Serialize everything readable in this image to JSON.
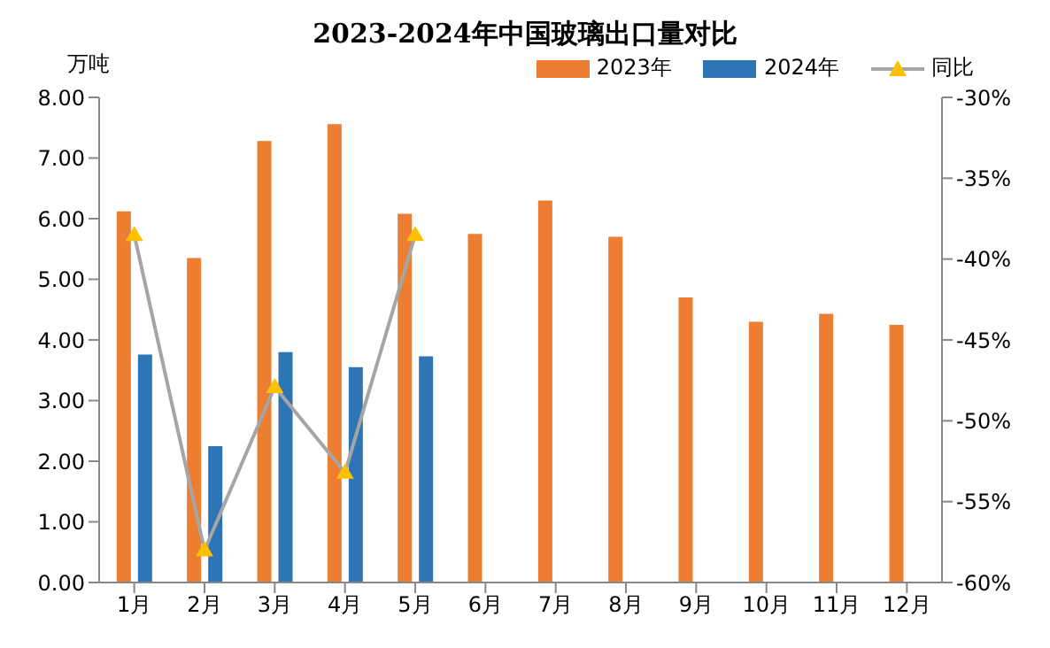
{
  "chart_data": {
    "type": "bar",
    "title": "2023-2024年中国玻璃出口量对比",
    "ylabel": "万吨",
    "categories": [
      "1月",
      "2月",
      "3月",
      "4月",
      "5月",
      "6月",
      "7月",
      "8月",
      "9月",
      "10月",
      "11月",
      "12月"
    ],
    "series": [
      {
        "name": "2023年",
        "color": "#ed7d31",
        "values": [
          6.12,
          5.35,
          7.28,
          7.56,
          6.08,
          5.75,
          6.3,
          5.7,
          4.7,
          4.3,
          4.43,
          4.25
        ]
      },
      {
        "name": "2024年",
        "color": "#2e75b6",
        "values": [
          3.76,
          2.25,
          3.8,
          3.55,
          3.73,
          null,
          null,
          null,
          null,
          null,
          null,
          null
        ]
      },
      {
        "name": "同比",
        "type": "line",
        "axis": "y2",
        "color": "#a5a5a5",
        "marker": "triangle",
        "values": [
          -38.5,
          -58,
          -47.9,
          -53.2,
          -38.5,
          null,
          null,
          null,
          null,
          null,
          null,
          null
        ]
      }
    ],
    "ylim": [
      0,
      8
    ],
    "yticks": [
      {
        "value": 0,
        "label": "0.00"
      },
      {
        "value": 1,
        "label": "1.00"
      },
      {
        "value": 2,
        "label": "2.00"
      },
      {
        "value": 3,
        "label": "3.00"
      },
      {
        "value": 4,
        "label": "4.00"
      },
      {
        "value": 5,
        "label": "5.00"
      },
      {
        "value": 6,
        "label": "6.00"
      },
      {
        "value": 7,
        "label": "7.00"
      },
      {
        "value": 8,
        "label": "8.00"
      }
    ],
    "y2lim": [
      -60,
      -30
    ],
    "y2ticks": [
      {
        "value": -60,
        "label": "-60%"
      },
      {
        "value": -55,
        "label": "-55%"
      },
      {
        "value": -50,
        "label": "-50%"
      },
      {
        "value": -45,
        "label": "-45%"
      },
      {
        "value": -40,
        "label": "-40%"
      },
      {
        "value": -35,
        "label": "-35%"
      },
      {
        "value": -30,
        "label": "-30%"
      }
    ],
    "grid": false,
    "legend": "top right"
  }
}
